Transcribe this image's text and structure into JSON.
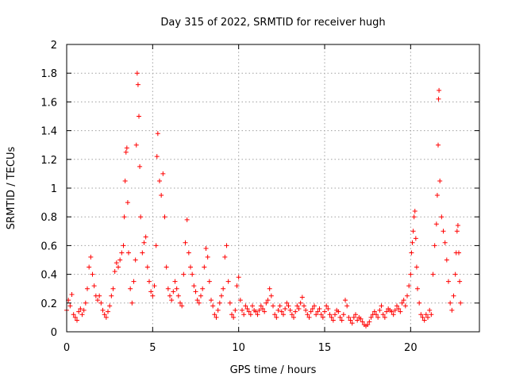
{
  "chart_data": {
    "type": "scatter",
    "title": "Day 315 of 2022, SRMTID for receiver hugh",
    "xlabel": "GPS time / hours",
    "ylabel": "SRMTID / TECUs",
    "xlim": [
      0,
      24
    ],
    "ylim": [
      0,
      2
    ],
    "xticks": [
      0,
      5,
      10,
      15,
      20
    ],
    "yticks": [
      0,
      0.2,
      0.4,
      0.6,
      0.8,
      1,
      1.2,
      1.4,
      1.6,
      1.8,
      2
    ],
    "xtick_labels": [
      "0",
      "5",
      "10",
      "15",
      "20"
    ],
    "ytick_labels": [
      "0",
      "0.2",
      "0.4",
      "0.6",
      "0.8",
      "1",
      "1.2",
      "1.4",
      "1.6",
      "1.8",
      "2"
    ],
    "grid": true,
    "marker": "+",
    "color": "#ff0000",
    "series": [
      {
        "name": "SRMTID",
        "points": [
          [
            0.0,
            0.15
          ],
          [
            0.1,
            0.22
          ],
          [
            0.2,
            0.18
          ],
          [
            0.3,
            0.26
          ],
          [
            0.4,
            0.12
          ],
          [
            0.5,
            0.1
          ],
          [
            0.6,
            0.08
          ],
          [
            0.7,
            0.14
          ],
          [
            0.8,
            0.16
          ],
          [
            0.9,
            0.12
          ],
          [
            1.0,
            0.15
          ],
          [
            1.1,
            0.2
          ],
          [
            1.2,
            0.3
          ],
          [
            1.3,
            0.45
          ],
          [
            1.4,
            0.52
          ],
          [
            1.5,
            0.4
          ],
          [
            1.6,
            0.32
          ],
          [
            1.7,
            0.25
          ],
          [
            1.8,
            0.22
          ],
          [
            1.9,
            0.25
          ],
          [
            2.0,
            0.2
          ],
          [
            2.1,
            0.15
          ],
          [
            2.2,
            0.12
          ],
          [
            2.3,
            0.1
          ],
          [
            2.4,
            0.14
          ],
          [
            2.5,
            0.18
          ],
          [
            2.6,
            0.25
          ],
          [
            2.7,
            0.3
          ],
          [
            2.8,
            0.42
          ],
          [
            2.9,
            0.48
          ],
          [
            3.0,
            0.45
          ],
          [
            3.1,
            0.5
          ],
          [
            3.2,
            0.55
          ],
          [
            3.3,
            0.6
          ],
          [
            3.35,
            0.8
          ],
          [
            3.4,
            1.05
          ],
          [
            3.45,
            1.25
          ],
          [
            3.5,
            1.28
          ],
          [
            3.55,
            0.9
          ],
          [
            3.6,
            0.55
          ],
          [
            3.7,
            0.3
          ],
          [
            3.8,
            0.2
          ],
          [
            3.9,
            0.35
          ],
          [
            4.0,
            0.5
          ],
          [
            4.05,
            1.3
          ],
          [
            4.1,
            1.8
          ],
          [
            4.15,
            1.72
          ],
          [
            4.2,
            1.5
          ],
          [
            4.25,
            1.15
          ],
          [
            4.3,
            0.8
          ],
          [
            4.4,
            0.55
          ],
          [
            4.5,
            0.62
          ],
          [
            4.6,
            0.66
          ],
          [
            4.7,
            0.45
          ],
          [
            4.8,
            0.35
          ],
          [
            4.9,
            0.28
          ],
          [
            5.0,
            0.25
          ],
          [
            5.1,
            0.32
          ],
          [
            5.2,
            0.6
          ],
          [
            5.25,
            1.22
          ],
          [
            5.3,
            1.38
          ],
          [
            5.4,
            1.05
          ],
          [
            5.5,
            0.95
          ],
          [
            5.6,
            1.1
          ],
          [
            5.7,
            0.8
          ],
          [
            5.8,
            0.45
          ],
          [
            5.9,
            0.3
          ],
          [
            6.0,
            0.25
          ],
          [
            6.1,
            0.22
          ],
          [
            6.2,
            0.28
          ],
          [
            6.3,
            0.35
          ],
          [
            6.4,
            0.3
          ],
          [
            6.5,
            0.25
          ],
          [
            6.6,
            0.2
          ],
          [
            6.7,
            0.18
          ],
          [
            6.8,
            0.4
          ],
          [
            6.9,
            0.62
          ],
          [
            7.0,
            0.78
          ],
          [
            7.1,
            0.55
          ],
          [
            7.2,
            0.45
          ],
          [
            7.3,
            0.4
          ],
          [
            7.4,
            0.32
          ],
          [
            7.5,
            0.28
          ],
          [
            7.6,
            0.22
          ],
          [
            7.7,
            0.2
          ],
          [
            7.8,
            0.25
          ],
          [
            7.9,
            0.3
          ],
          [
            8.0,
            0.45
          ],
          [
            8.1,
            0.58
          ],
          [
            8.2,
            0.52
          ],
          [
            8.3,
            0.35
          ],
          [
            8.4,
            0.22
          ],
          [
            8.5,
            0.18
          ],
          [
            8.6,
            0.12
          ],
          [
            8.7,
            0.1
          ],
          [
            8.8,
            0.15
          ],
          [
            8.9,
            0.2
          ],
          [
            9.0,
            0.25
          ],
          [
            9.1,
            0.3
          ],
          [
            9.2,
            0.52
          ],
          [
            9.3,
            0.6
          ],
          [
            9.4,
            0.35
          ],
          [
            9.5,
            0.2
          ],
          [
            9.6,
            0.12
          ],
          [
            9.7,
            0.1
          ],
          [
            9.8,
            0.15
          ],
          [
            9.9,
            0.32
          ],
          [
            10.0,
            0.38
          ],
          [
            10.1,
            0.22
          ],
          [
            10.2,
            0.15
          ],
          [
            10.3,
            0.12
          ],
          [
            10.4,
            0.18
          ],
          [
            10.5,
            0.16
          ],
          [
            10.6,
            0.14
          ],
          [
            10.7,
            0.12
          ],
          [
            10.8,
            0.18
          ],
          [
            10.9,
            0.15
          ],
          [
            11.0,
            0.14
          ],
          [
            11.1,
            0.12
          ],
          [
            11.2,
            0.15
          ],
          [
            11.3,
            0.18
          ],
          [
            11.4,
            0.16
          ],
          [
            11.5,
            0.14
          ],
          [
            11.6,
            0.2
          ],
          [
            11.7,
            0.22
          ],
          [
            11.8,
            0.3
          ],
          [
            11.9,
            0.25
          ],
          [
            12.0,
            0.18
          ],
          [
            12.1,
            0.12
          ],
          [
            12.2,
            0.1
          ],
          [
            12.3,
            0.15
          ],
          [
            12.4,
            0.18
          ],
          [
            12.5,
            0.14
          ],
          [
            12.6,
            0.12
          ],
          [
            12.7,
            0.16
          ],
          [
            12.8,
            0.2
          ],
          [
            12.9,
            0.18
          ],
          [
            13.0,
            0.15
          ],
          [
            13.1,
            0.12
          ],
          [
            13.2,
            0.1
          ],
          [
            13.3,
            0.14
          ],
          [
            13.4,
            0.18
          ],
          [
            13.5,
            0.16
          ],
          [
            13.6,
            0.2
          ],
          [
            13.7,
            0.24
          ],
          [
            13.8,
            0.18
          ],
          [
            13.9,
            0.15
          ],
          [
            14.0,
            0.12
          ],
          [
            14.1,
            0.1
          ],
          [
            14.2,
            0.14
          ],
          [
            14.3,
            0.16
          ],
          [
            14.4,
            0.18
          ],
          [
            14.5,
            0.12
          ],
          [
            14.6,
            0.14
          ],
          [
            14.7,
            0.16
          ],
          [
            14.8,
            0.12
          ],
          [
            14.9,
            0.1
          ],
          [
            15.0,
            0.14
          ],
          [
            15.1,
            0.18
          ],
          [
            15.2,
            0.16
          ],
          [
            15.3,
            0.12
          ],
          [
            15.4,
            0.1
          ],
          [
            15.5,
            0.08
          ],
          [
            15.6,
            0.12
          ],
          [
            15.7,
            0.15
          ],
          [
            15.8,
            0.14
          ],
          [
            15.9,
            0.1
          ],
          [
            16.0,
            0.08
          ],
          [
            16.1,
            0.12
          ],
          [
            16.2,
            0.22
          ],
          [
            16.3,
            0.18
          ],
          [
            16.4,
            0.1
          ],
          [
            16.5,
            0.08
          ],
          [
            16.6,
            0.06
          ],
          [
            16.7,
            0.1
          ],
          [
            16.8,
            0.12
          ],
          [
            16.9,
            0.08
          ],
          [
            17.0,
            0.1
          ],
          [
            17.1,
            0.09
          ],
          [
            17.2,
            0.07
          ],
          [
            17.3,
            0.05
          ],
          [
            17.4,
            0.04
          ],
          [
            17.5,
            0.05
          ],
          [
            17.6,
            0.07
          ],
          [
            17.7,
            0.1
          ],
          [
            17.8,
            0.12
          ],
          [
            17.9,
            0.14
          ],
          [
            18.0,
            0.12
          ],
          [
            18.1,
            0.1
          ],
          [
            18.2,
            0.15
          ],
          [
            18.3,
            0.18
          ],
          [
            18.4,
            0.12
          ],
          [
            18.5,
            0.1
          ],
          [
            18.6,
            0.14
          ],
          [
            18.7,
            0.16
          ],
          [
            18.8,
            0.15
          ],
          [
            18.9,
            0.14
          ],
          [
            19.0,
            0.12
          ],
          [
            19.1,
            0.15
          ],
          [
            19.2,
            0.18
          ],
          [
            19.3,
            0.16
          ],
          [
            19.4,
            0.14
          ],
          [
            19.5,
            0.2
          ],
          [
            19.6,
            0.22
          ],
          [
            19.7,
            0.18
          ],
          [
            19.8,
            0.25
          ],
          [
            19.9,
            0.32
          ],
          [
            20.0,
            0.4
          ],
          [
            20.05,
            0.55
          ],
          [
            20.1,
            0.62
          ],
          [
            20.15,
            0.7
          ],
          [
            20.2,
            0.8
          ],
          [
            20.25,
            0.84
          ],
          [
            20.3,
            0.65
          ],
          [
            20.35,
            0.45
          ],
          [
            20.4,
            0.3
          ],
          [
            20.5,
            0.2
          ],
          [
            20.6,
            0.12
          ],
          [
            20.7,
            0.1
          ],
          [
            20.8,
            0.08
          ],
          [
            20.9,
            0.12
          ],
          [
            21.0,
            0.1
          ],
          [
            21.1,
            0.15
          ],
          [
            21.2,
            0.12
          ],
          [
            21.3,
            0.4
          ],
          [
            21.4,
            0.6
          ],
          [
            21.5,
            0.75
          ],
          [
            21.55,
            0.95
          ],
          [
            21.6,
            1.3
          ],
          [
            21.62,
            1.62
          ],
          [
            21.65,
            1.68
          ],
          [
            21.7,
            1.05
          ],
          [
            21.8,
            0.8
          ],
          [
            21.9,
            0.7
          ],
          [
            22.0,
            0.62
          ],
          [
            22.1,
            0.5
          ],
          [
            22.2,
            0.35
          ],
          [
            22.3,
            0.2
          ],
          [
            22.4,
            0.15
          ],
          [
            22.5,
            0.25
          ],
          [
            22.6,
            0.4
          ],
          [
            22.65,
            0.55
          ],
          [
            22.7,
            0.7
          ],
          [
            22.75,
            0.74
          ],
          [
            22.8,
            0.55
          ],
          [
            22.85,
            0.35
          ],
          [
            22.9,
            0.2
          ]
        ]
      }
    ]
  }
}
